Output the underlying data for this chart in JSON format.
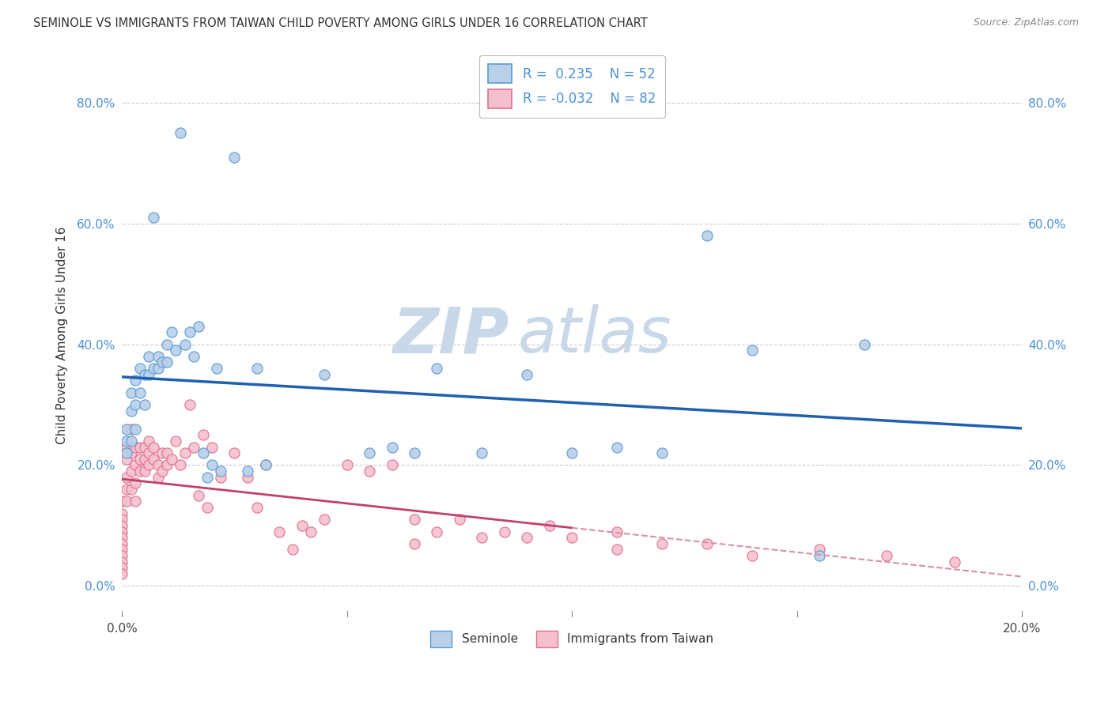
{
  "title": "SEMINOLE VS IMMIGRANTS FROM TAIWAN CHILD POVERTY AMONG GIRLS UNDER 16 CORRELATION CHART",
  "source": "Source: ZipAtlas.com",
  "ylabel": "Child Poverty Among Girls Under 16",
  "xlim": [
    0.0,
    0.2
  ],
  "ylim": [
    -0.05,
    0.88
  ],
  "background_color": "#ffffff",
  "grid_color": "#cccccc",
  "seminole_color": "#b8d0e8",
  "taiwan_color": "#f5c0ce",
  "seminole_edge_color": "#5b9bd5",
  "taiwan_edge_color": "#e07090",
  "seminole_line_color": "#2060b0",
  "taiwan_line_solid_color": "#c04070",
  "taiwan_line_dash_color": "#d890a8",
  "ytick_vals": [
    0.0,
    0.2,
    0.4,
    0.6,
    0.8
  ],
  "ytick_labels": [
    "0.0%",
    "20.0%",
    "40.0%",
    "60.0%",
    "80.0%"
  ],
  "xtick_vals": [
    0.0,
    0.05,
    0.1,
    0.15,
    0.2
  ],
  "xtick_labels": [
    "0.0%",
    "",
    "",
    "",
    "20.0%"
  ],
  "watermark_zip": "ZIP",
  "watermark_atlas": "atlas",
  "watermark_color": "#c8d8e8",
  "seminole_x": [
    0.001,
    0.001,
    0.001,
    0.002,
    0.002,
    0.002,
    0.003,
    0.003,
    0.003,
    0.004,
    0.004,
    0.005,
    0.005,
    0.006,
    0.006,
    0.007,
    0.007,
    0.008,
    0.008,
    0.009,
    0.01,
    0.01,
    0.011,
    0.012,
    0.013,
    0.014,
    0.015,
    0.016,
    0.017,
    0.018,
    0.019,
    0.02,
    0.021,
    0.022,
    0.025,
    0.028,
    0.03,
    0.032,
    0.045,
    0.055,
    0.06,
    0.065,
    0.07,
    0.08,
    0.09,
    0.1,
    0.11,
    0.12,
    0.13,
    0.14,
    0.155,
    0.165
  ],
  "seminole_y": [
    0.26,
    0.24,
    0.22,
    0.32,
    0.29,
    0.24,
    0.34,
    0.3,
    0.26,
    0.36,
    0.32,
    0.35,
    0.3,
    0.38,
    0.35,
    0.61,
    0.36,
    0.38,
    0.36,
    0.37,
    0.4,
    0.37,
    0.42,
    0.39,
    0.75,
    0.4,
    0.42,
    0.38,
    0.43,
    0.22,
    0.18,
    0.2,
    0.36,
    0.19,
    0.71,
    0.19,
    0.36,
    0.2,
    0.35,
    0.22,
    0.23,
    0.22,
    0.36,
    0.22,
    0.35,
    0.22,
    0.23,
    0.22,
    0.58,
    0.39,
    0.05,
    0.4
  ],
  "taiwan_x": [
    0.0,
    0.0,
    0.0,
    0.0,
    0.0,
    0.0,
    0.0,
    0.0,
    0.0,
    0.0,
    0.0,
    0.0,
    0.001,
    0.001,
    0.001,
    0.001,
    0.001,
    0.002,
    0.002,
    0.002,
    0.002,
    0.003,
    0.003,
    0.003,
    0.003,
    0.004,
    0.004,
    0.004,
    0.005,
    0.005,
    0.005,
    0.006,
    0.006,
    0.006,
    0.007,
    0.007,
    0.008,
    0.008,
    0.009,
    0.009,
    0.01,
    0.01,
    0.011,
    0.012,
    0.013,
    0.014,
    0.015,
    0.016,
    0.017,
    0.018,
    0.019,
    0.02,
    0.022,
    0.025,
    0.028,
    0.03,
    0.032,
    0.035,
    0.038,
    0.04,
    0.042,
    0.045,
    0.05,
    0.055,
    0.06,
    0.065,
    0.07,
    0.075,
    0.08,
    0.085,
    0.09,
    0.095,
    0.1,
    0.11,
    0.12,
    0.13,
    0.14,
    0.155,
    0.17,
    0.185,
    0.11,
    0.065
  ],
  "taiwan_y": [
    0.14,
    0.12,
    0.11,
    0.1,
    0.09,
    0.08,
    0.07,
    0.06,
    0.05,
    0.04,
    0.03,
    0.02,
    0.23,
    0.21,
    0.18,
    0.16,
    0.14,
    0.26,
    0.22,
    0.19,
    0.16,
    0.23,
    0.2,
    0.17,
    0.14,
    0.23,
    0.21,
    0.19,
    0.23,
    0.21,
    0.19,
    0.24,
    0.22,
    0.2,
    0.23,
    0.21,
    0.2,
    0.18,
    0.22,
    0.19,
    0.22,
    0.2,
    0.21,
    0.24,
    0.2,
    0.22,
    0.3,
    0.23,
    0.15,
    0.25,
    0.13,
    0.23,
    0.18,
    0.22,
    0.18,
    0.13,
    0.2,
    0.09,
    0.06,
    0.1,
    0.09,
    0.11,
    0.2,
    0.19,
    0.2,
    0.11,
    0.09,
    0.11,
    0.08,
    0.09,
    0.08,
    0.1,
    0.08,
    0.09,
    0.07,
    0.07,
    0.05,
    0.06,
    0.05,
    0.04,
    0.06,
    0.07
  ]
}
